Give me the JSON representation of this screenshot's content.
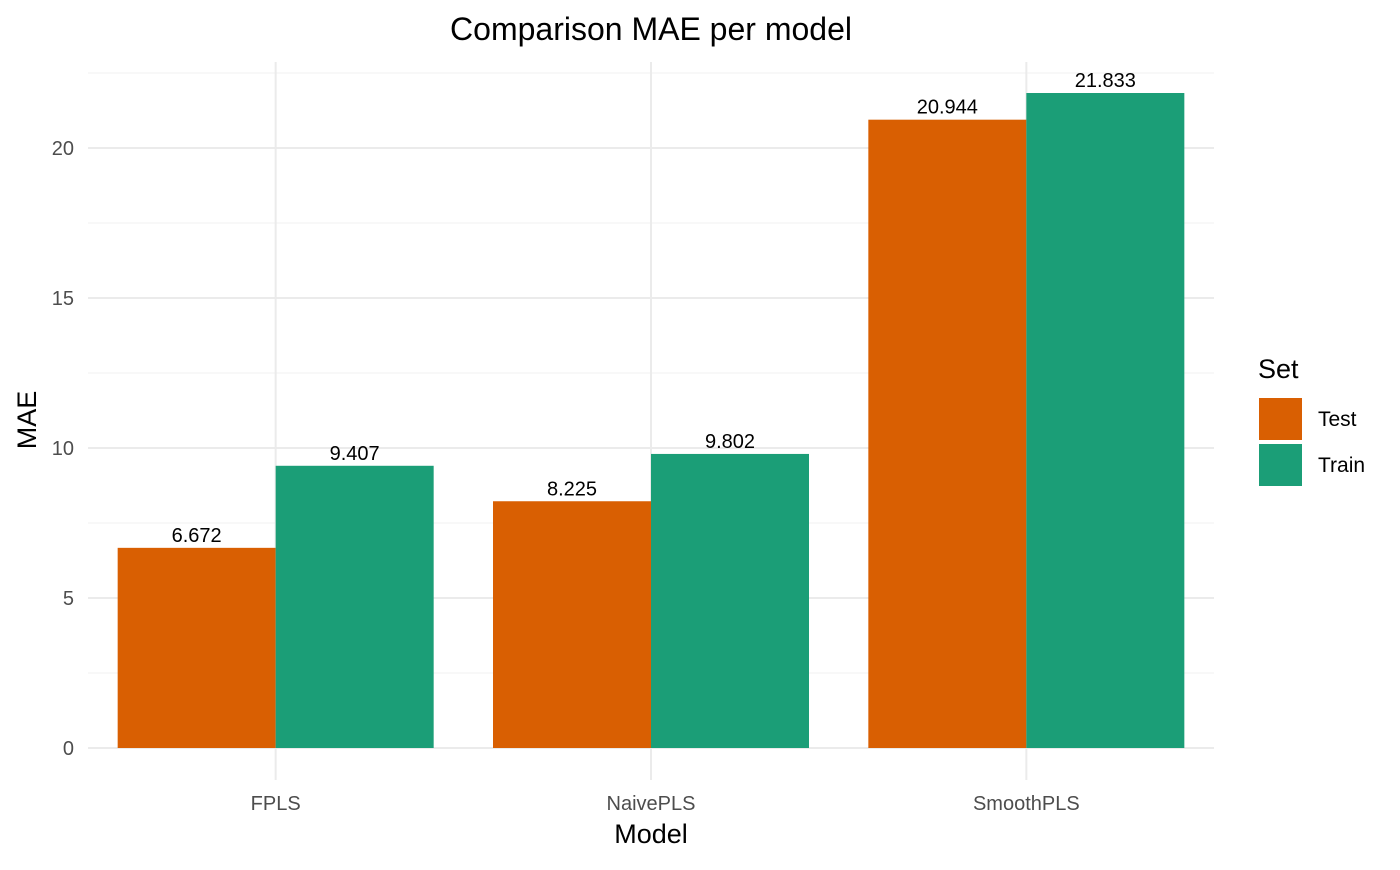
{
  "chart_data": {
    "type": "bar",
    "title": "Comparison MAE per model",
    "xlabel": "Model",
    "ylabel": "MAE",
    "categories": [
      "FPLS",
      "NaivePLS",
      "SmoothPLS"
    ],
    "series": [
      {
        "name": "Test",
        "color": "#d95f02",
        "values": [
          6.672,
          8.225,
          20.944
        ],
        "labels": [
          "6.672",
          "8.225",
          "20.944"
        ]
      },
      {
        "name": "Train",
        "color": "#1b9e77",
        "values": [
          9.407,
          9.802,
          21.833
        ],
        "labels": [
          "9.407",
          "9.802",
          "21.833"
        ]
      }
    ],
    "ylim": [
      0,
      22.5
    ],
    "y_ticks": [
      0,
      5,
      10,
      15,
      20
    ],
    "y_tick_labels": [
      "0",
      "5",
      "10",
      "15",
      "20"
    ],
    "grid": true,
    "legend": {
      "title": "Set",
      "placement": "right"
    }
  }
}
